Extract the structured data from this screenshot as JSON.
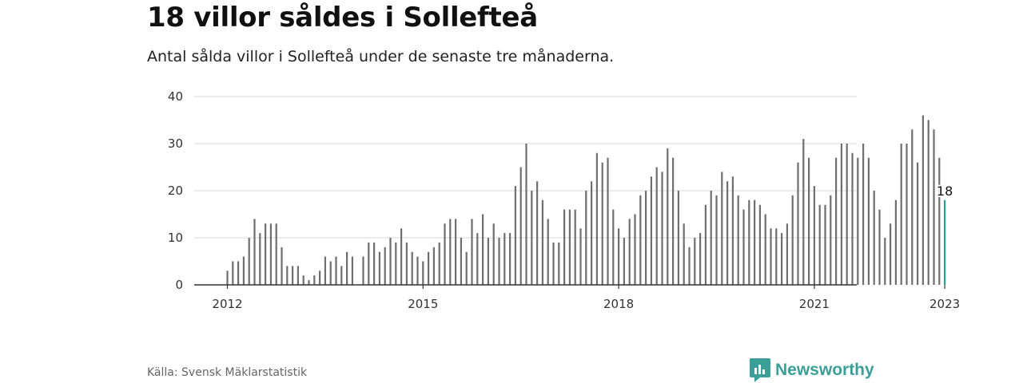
{
  "header": {
    "title": "18 villor såldes i Sollefteå",
    "subtitle": "Antal sålda villor i Sollefteå under de senaste tre månaderna."
  },
  "footer": {
    "source": "Källa: Svensk Mäklarstatistik",
    "brand": "Newsworthy"
  },
  "colors": {
    "bar": "#6e6e73",
    "highlight": "#2a9d95",
    "grid": "#d9d9d9",
    "axis": "#333333",
    "brand": "#3aa097"
  },
  "chart_data": {
    "type": "bar",
    "title": "18 villor såldes i Sollefteå",
    "subtitle": "Antal sålda villor i Sollefteå under de senaste tre månaderna.",
    "xlabel": "",
    "ylabel": "",
    "ylim": [
      0,
      40
    ],
    "yticks": [
      0,
      10,
      20,
      30,
      40
    ],
    "xticks": [
      "2012",
      "2015",
      "2018",
      "2021",
      "2023"
    ],
    "x_start": "2012-01",
    "x_end": "2023-01",
    "frequency": "monthly",
    "grid": true,
    "legend": "none",
    "highlight": {
      "x": "2023-01",
      "value": 18,
      "label": "18"
    },
    "values": [
      3,
      5,
      5,
      6,
      10,
      14,
      11,
      13,
      13,
      13,
      8,
      4,
      4,
      4,
      2,
      1,
      2,
      3,
      6,
      5,
      6,
      4,
      7,
      6,
      null,
      6,
      9,
      9,
      7,
      8,
      10,
      9,
      12,
      9,
      7,
      6,
      5,
      7,
      8,
      9,
      13,
      14,
      14,
      10,
      7,
      14,
      11,
      15,
      10,
      13,
      10,
      11,
      11,
      21,
      25,
      30,
      20,
      22,
      18,
      14,
      9,
      9,
      16,
      16,
      16,
      12,
      20,
      22,
      28,
      26,
      27,
      16,
      12,
      10,
      14,
      15,
      19,
      20,
      23,
      25,
      24,
      29,
      27,
      20,
      13,
      8,
      10,
      11,
      17,
      20,
      19,
      24,
      22,
      23,
      19,
      16,
      18,
      18,
      17,
      15,
      12,
      12,
      11,
      13,
      19,
      26,
      31,
      27,
      21,
      17,
      17,
      19,
      27,
      30,
      30,
      28,
      27,
      30,
      27,
      20,
      16,
      10,
      13,
      18,
      30,
      30,
      33,
      26,
      36,
      35,
      33,
      27,
      18
    ]
  }
}
